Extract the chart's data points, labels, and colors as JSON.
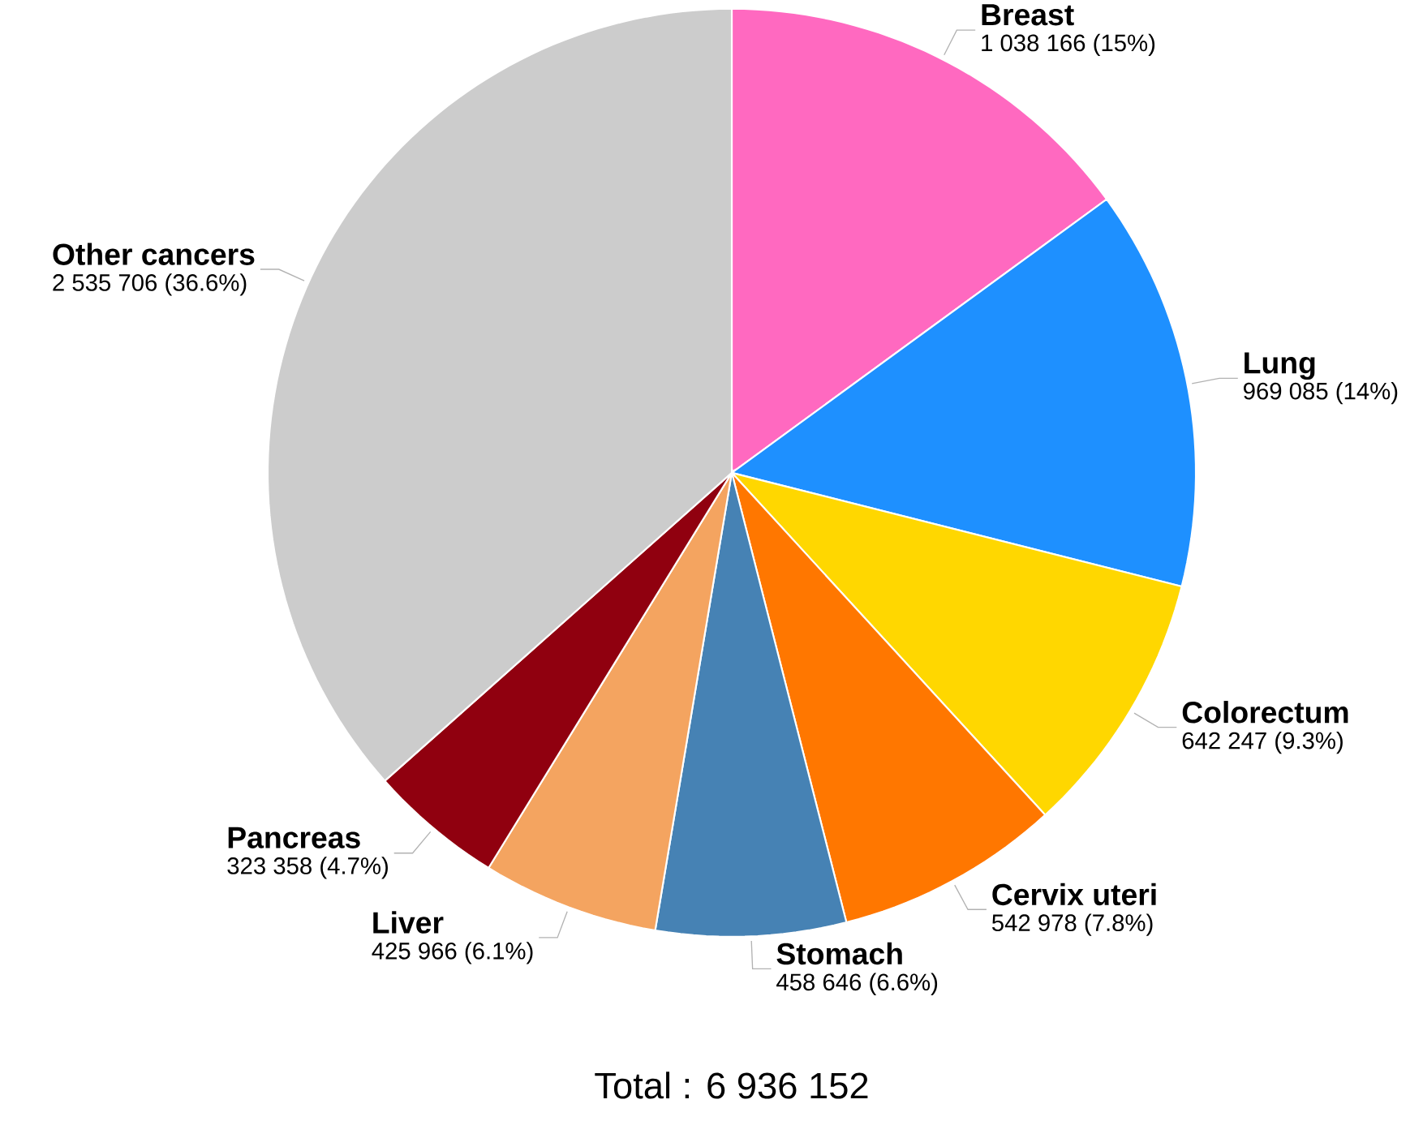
{
  "chart_data": {
    "type": "pie",
    "categories": [
      "Breast",
      "Lung",
      "Colorectum",
      "Cervix uteri",
      "Stomach",
      "Liver",
      "Pancreas",
      "Other cancers"
    ],
    "values": [
      1038166,
      969085,
      642247,
      542978,
      458646,
      425966,
      323358,
      2535706
    ],
    "value_labels": [
      "1 038 166 (15%)",
      "969 085 (14%)",
      "642 247 (9.3%)",
      "542 978 (7.8%)",
      "458 646 (6.6%)",
      "425 966 (6.1%)",
      "323 358 (4.7%)",
      "2 535 706 (36.6%)"
    ],
    "colors": [
      "#ff69c0",
      "#1e90ff",
      "#ffd700",
      "#ff7700",
      "#4682b4",
      "#f4a460",
      "#90000f",
      "#cccccc"
    ],
    "annotations": [
      "Total : 6 936 152"
    ]
  }
}
